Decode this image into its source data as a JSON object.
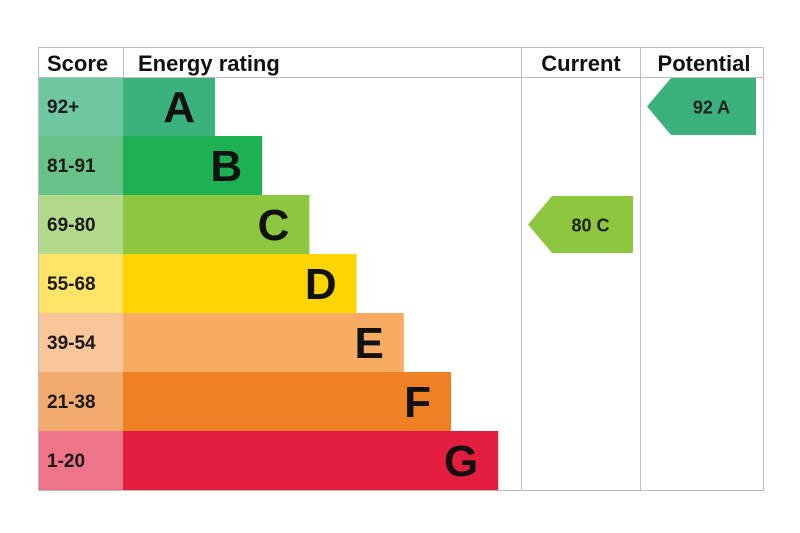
{
  "chart_data": {
    "type": "bar",
    "headers": {
      "score": "Score",
      "energy_rating": "Energy rating",
      "current": "Current",
      "potential": "Potential"
    },
    "bands": [
      {
        "score": "92+",
        "letter": "A",
        "level": 1,
        "color": "#3bb17c",
        "score_bg": "#6fc7a1"
      },
      {
        "score": "81-91",
        "letter": "B",
        "level": 2,
        "color": "#1db154",
        "score_bg": "#67c287"
      },
      {
        "score": "69-80",
        "letter": "C",
        "level": 3,
        "color": "#8dc63f",
        "score_bg": "#b3d98b"
      },
      {
        "score": "55-68",
        "letter": "D",
        "level": 4,
        "color": "#fed503",
        "score_bg": "#fde467"
      },
      {
        "score": "39-54",
        "letter": "E",
        "level": 5,
        "color": "#f7ab63",
        "score_bg": "#f9c59a"
      },
      {
        "score": "21-38",
        "letter": "F",
        "level": 6,
        "color": "#ef8023",
        "score_bg": "#f3aa6e"
      },
      {
        "score": "1-20",
        "letter": "G",
        "level": 7,
        "color": "#e31d3e",
        "score_bg": "#ee7489"
      }
    ],
    "current": {
      "value": 80,
      "letter": "C",
      "color": "#8dc63f"
    },
    "potential": {
      "value": 92,
      "letter": "A",
      "color": "#3bb17c"
    }
  }
}
